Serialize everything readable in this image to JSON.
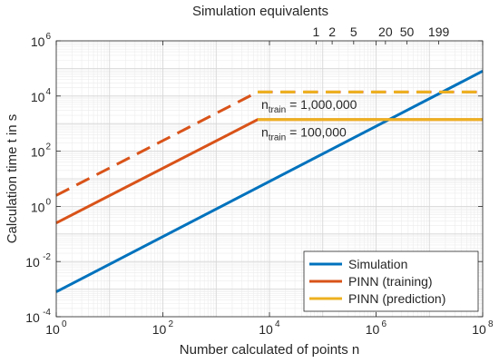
{
  "chart_data": {
    "type": "line",
    "title": "",
    "xlabel": "Number calculated of points n",
    "ylabel": "Calculation time t in s",
    "top_axis_label": "Simulation equivalents",
    "x_scale": "log",
    "y_scale": "log",
    "xlim": [
      1,
      100000000
    ],
    "ylim": [
      0.0001,
      1000000
    ],
    "grid": true,
    "minor_grid": true,
    "legend_position": "bottom-right",
    "x_ticks": [
      {
        "value": 1,
        "base": "10",
        "exp": "0"
      },
      {
        "value": 100,
        "base": "10",
        "exp": "2"
      },
      {
        "value": 10000,
        "base": "10",
        "exp": "4"
      },
      {
        "value": 1000000,
        "base": "10",
        "exp": "6"
      },
      {
        "value": 100000000,
        "base": "10",
        "exp": "8"
      }
    ],
    "y_ticks": [
      {
        "value": 0.0001,
        "base": "10",
        "exp": "-4"
      },
      {
        "value": 0.01,
        "base": "10",
        "exp": "-2"
      },
      {
        "value": 1,
        "base": "10",
        "exp": "0"
      },
      {
        "value": 100,
        "base": "10",
        "exp": "2"
      },
      {
        "value": 10000,
        "base": "10",
        "exp": "4"
      },
      {
        "value": 1000000,
        "base": "10",
        "exp": "6"
      }
    ],
    "top_ticks": [
      {
        "label": "1",
        "n": 75000
      },
      {
        "label": "2",
        "n": 150000
      },
      {
        "label": "5",
        "n": 380000
      },
      {
        "label": "20",
        "n": 1500000
      },
      {
        "label": "50",
        "n": 3800000
      },
      {
        "label": "199",
        "n": 15000000
      }
    ],
    "series": [
      {
        "name": "Simulation",
        "color": "#0072BD",
        "style": "solid",
        "points": [
          [
            1,
            0.0008
          ],
          [
            100000000,
            80000
          ]
        ]
      },
      {
        "name": "PINN (training)",
        "color": "#D95319",
        "style": "solid",
        "points": [
          [
            1,
            0.25
          ],
          [
            6000,
            1400
          ],
          [
            100000000,
            1400
          ]
        ]
      },
      {
        "name": "PINN (prediction)",
        "color": "#EDB120",
        "style": "solid",
        "points": [
          [
            6000,
            1400
          ],
          [
            100000000,
            1400
          ]
        ]
      },
      {
        "name": "",
        "color": "#D95319",
        "style": "dashed",
        "points": [
          [
            1,
            2.5
          ],
          [
            6000,
            14000
          ],
          [
            100000000,
            14000
          ]
        ]
      },
      {
        "name": "",
        "color": "#EDB120",
        "style": "dashed",
        "points": [
          [
            6000,
            14000
          ],
          [
            100000000,
            14000
          ]
        ]
      }
    ],
    "annotations": [
      {
        "base": "n",
        "sub": "train",
        "rest": " = 1,000,000",
        "x": 6000,
        "y": 5000
      },
      {
        "base": "n",
        "sub": "train",
        "rest": " = 100,000",
        "x": 6000,
        "y": 500
      }
    ],
    "legend": [
      {
        "label": "Simulation",
        "color": "#0072BD"
      },
      {
        "label": "PINN (training)",
        "color": "#D95319"
      },
      {
        "label": "PINN (prediction)",
        "color": "#EDB120"
      }
    ]
  }
}
